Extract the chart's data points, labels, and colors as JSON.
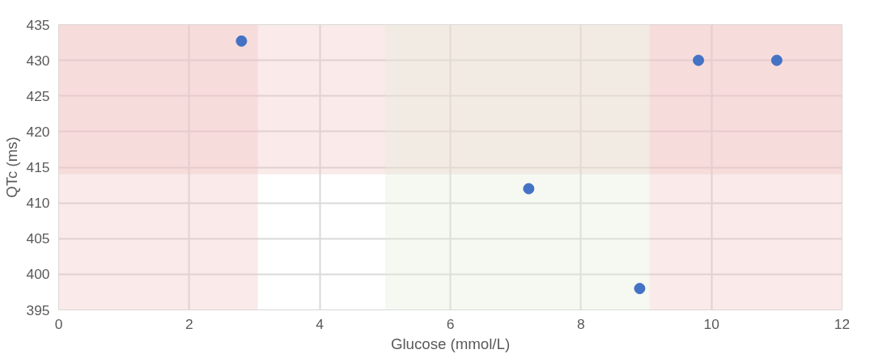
{
  "chart_data": {
    "type": "scatter",
    "xlabel": "Glucose (mmol/L)",
    "ylabel": "QTc (ms)",
    "x": [
      2.8,
      7.2,
      8.9,
      9.8,
      11
    ],
    "series": [
      {
        "color": "#4472c4",
        "values": [
          432.7,
          412,
          398,
          430,
          430
        ]
      }
    ],
    "xlim": [
      0,
      12
    ],
    "xticks": [
      0,
      2,
      4,
      6,
      8,
      10,
      12
    ],
    "ylim": [
      395,
      435
    ],
    "yticks": [
      395,
      400,
      405,
      410,
      415,
      420,
      425,
      430,
      435
    ],
    "grid": true,
    "marker": "circle",
    "bands": [
      {
        "axis": "y",
        "from": 414,
        "to": 435,
        "color": "#f2c4c4"
      },
      {
        "axis": "x",
        "from": 0,
        "to": 3.05,
        "color": "#f2c4c4"
      },
      {
        "axis": "x",
        "from": 9.05,
        "to": 12,
        "color": "#f2c4c4"
      },
      {
        "axis": "x",
        "from": 5,
        "to": 9.05,
        "color": "#e2efda"
      }
    ]
  }
}
